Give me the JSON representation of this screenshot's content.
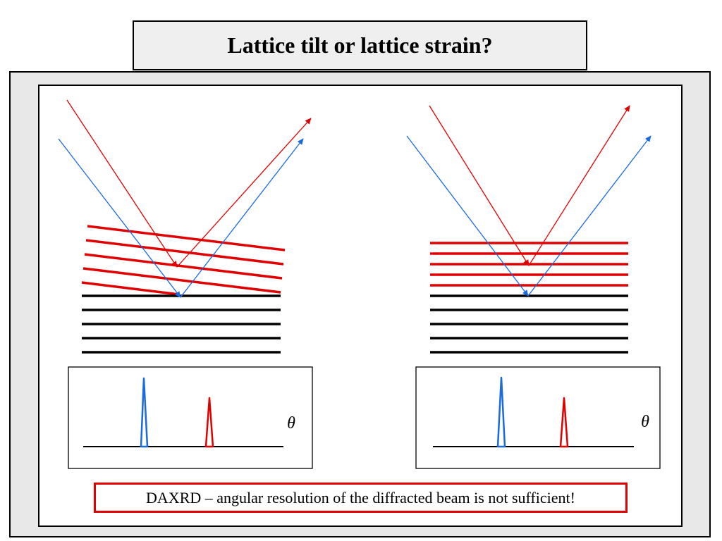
{
  "title": "Lattice tilt or lattice strain?",
  "caption": "DAXRD – angular resolution of the diffracted beam is not sufficient!",
  "plots": [
    {
      "axis_label": "θ"
    },
    {
      "axis_label": "θ"
    }
  ],
  "colors": {
    "red_beam": "#e00000",
    "blue_beam": "#1a6ae0",
    "lattice_red": "#e00000",
    "lattice_black": "#000000",
    "frame_gray": "#e8e8e8",
    "title_bg": "#efefef"
  }
}
